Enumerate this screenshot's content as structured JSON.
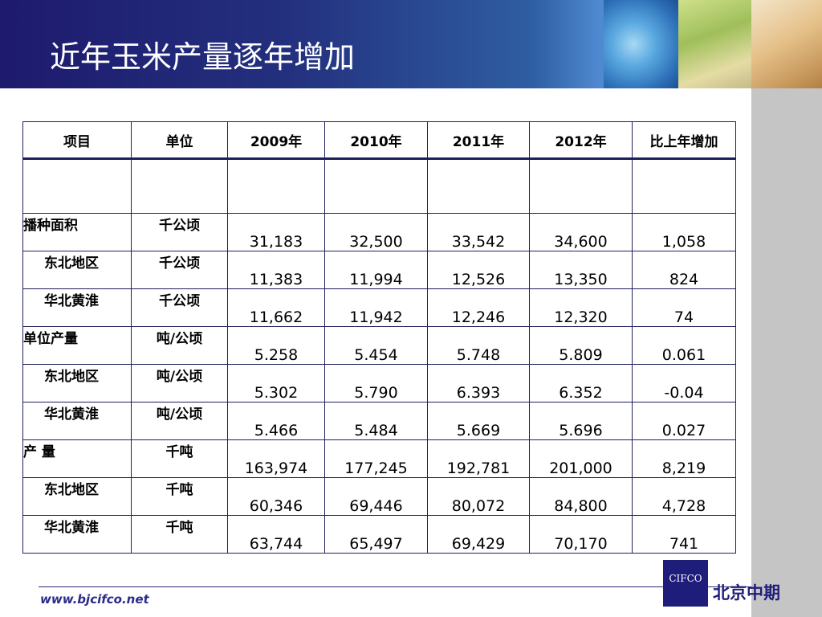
{
  "slide": {
    "title": "近年玉米产量逐年增加"
  },
  "table": {
    "headers": [
      "项目",
      "单位",
      "2009年",
      "2010年",
      "2011年",
      "2012年",
      "比上年增加"
    ],
    "rows": [
      {
        "item": "播种面积",
        "unit": "千公顷",
        "values": [
          "31,183",
          "32,500",
          "33,542",
          "34,600",
          "1,058"
        ]
      },
      {
        "item": "东北地区",
        "unit": "千公顷",
        "values": [
          "11,383",
          "11,994",
          "12,526",
          "13,350",
          "824"
        ]
      },
      {
        "item": "华北黄淮",
        "unit": "千公顷",
        "values": [
          "11,662",
          "11,942",
          "12,246",
          "12,320",
          "74"
        ]
      },
      {
        "item": "单位产量",
        "unit": "吨/公顷",
        "values": [
          "5.258",
          "5.454",
          "5.748",
          "5.809",
          "0.061"
        ]
      },
      {
        "item": "东北地区",
        "unit": "吨/公顷",
        "values": [
          "5.302",
          "5.790",
          "6.393",
          "6.352",
          "-0.04"
        ]
      },
      {
        "item": "华北黄淮",
        "unit": "吨/公顷",
        "values": [
          "5.466",
          "5.484",
          "5.669",
          "5.696",
          "0.027"
        ]
      },
      {
        "item": "产 量",
        "unit": "千吨",
        "values": [
          "163,974",
          "177,245",
          "192,781",
          "201,000",
          "8,219"
        ]
      },
      {
        "item": "东北地区",
        "unit": "千吨",
        "values": [
          "60,346",
          "69,446",
          "80,072",
          "84,800",
          "4,728"
        ]
      },
      {
        "item": "华北黄淮",
        "unit": "千吨",
        "values": [
          "63,744",
          "65,497",
          "69,429",
          "70,170",
          "741"
        ]
      }
    ]
  },
  "footer": {
    "url": "www.bjcifco.net",
    "logo_text": "CIFCO",
    "brand_name": "北京中期"
  }
}
